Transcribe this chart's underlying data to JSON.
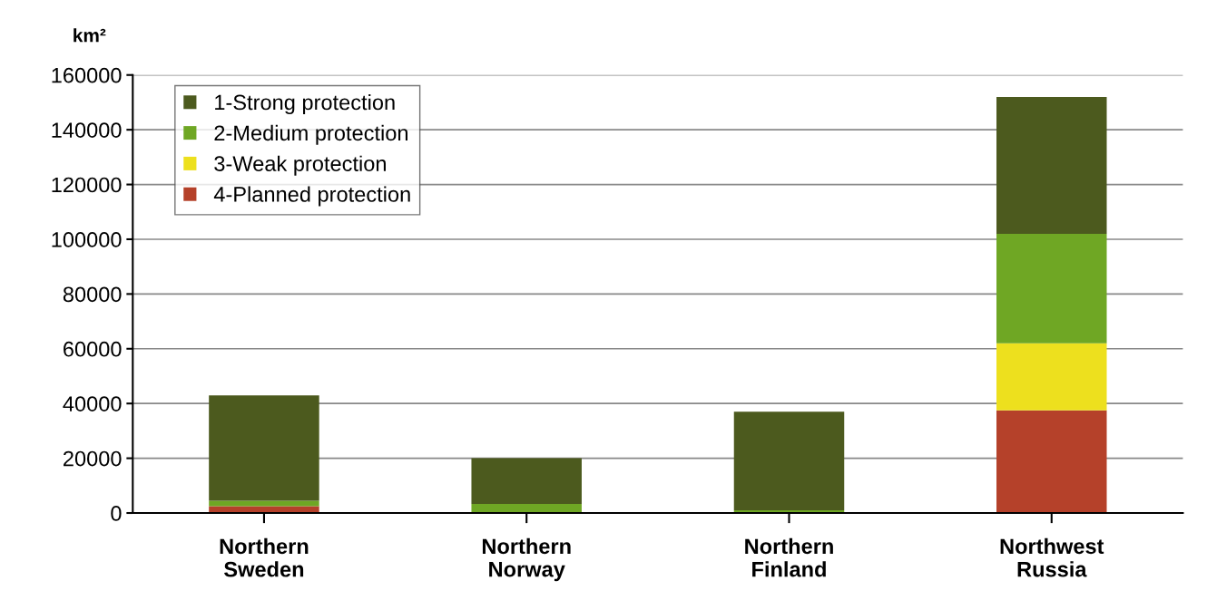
{
  "chart_data": {
    "type": "bar",
    "stacked": true,
    "ylabel": "km²",
    "categories": [
      "Northern\nSweden",
      "Northern\nNorway",
      "Northern\nFinland",
      "Northwest\nRussia"
    ],
    "series": [
      {
        "name": "4-Planned protection",
        "color": "#b5412a",
        "values": [
          2500,
          0,
          0,
          37500
        ]
      },
      {
        "name": "3-Weak protection",
        "color": "#ede01e",
        "values": [
          0,
          0,
          0,
          24500
        ]
      },
      {
        "name": "2-Medium protection",
        "color": "#6fa724",
        "values": [
          2000,
          3300,
          1000,
          40000
        ]
      },
      {
        "name": "1-Strong protection",
        "color": "#4c5a1e",
        "values": [
          38500,
          16700,
          36000,
          50000
        ]
      }
    ],
    "ylim": [
      0,
      160000
    ],
    "yticks": [
      0,
      20000,
      40000,
      60000,
      80000,
      100000,
      120000,
      140000,
      160000
    ],
    "grid": "y",
    "legend": "top left"
  }
}
